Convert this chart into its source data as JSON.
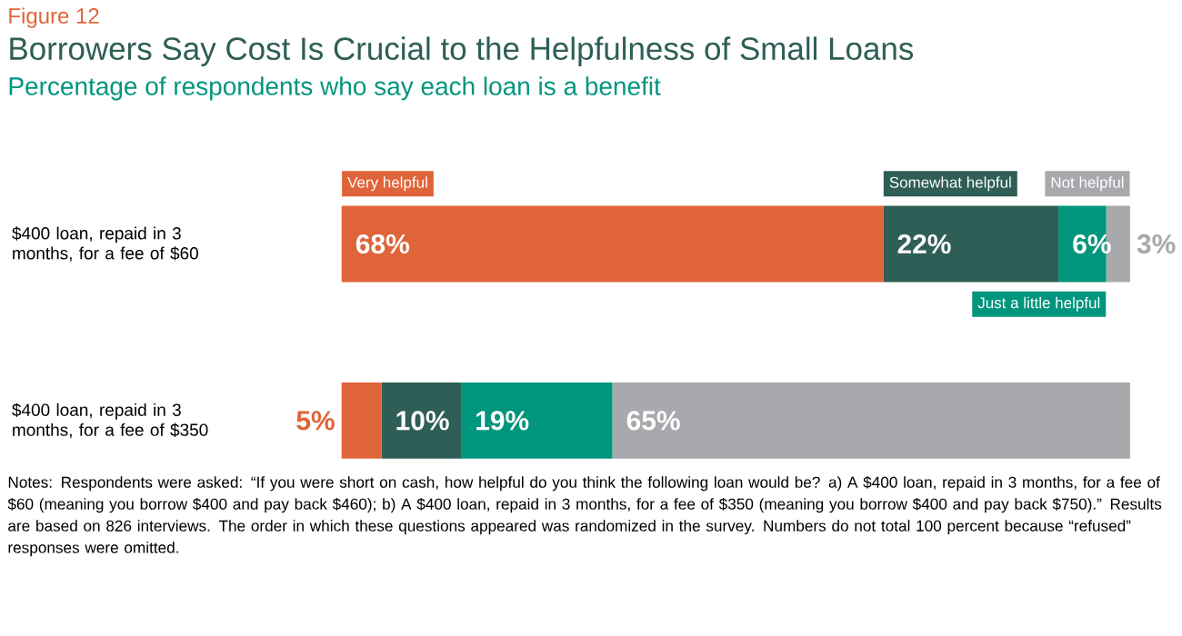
{
  "chart_data": {
    "type": "bar",
    "orientation": "horizontal",
    "stacked": true,
    "title": "Borrowers Say Cost Is Crucial to the Helpfulness of Small Loans",
    "subtitle": "Percentage of respondents who say each loan is a benefit",
    "categories": [
      "$400 loan, repaid in 3 months, for a fee of $60",
      "$400 loan, repaid in 3 months, for a fee of $350"
    ],
    "series": [
      {
        "name": "Very helpful",
        "color": "#e0643a",
        "values": [
          68,
          5
        ],
        "value_labels": [
          "68%",
          "5%"
        ]
      },
      {
        "name": "Somewhat helpful",
        "color": "#2e5e55",
        "values": [
          22,
          10
        ],
        "value_labels": [
          "22%",
          "10%"
        ]
      },
      {
        "name": "Just a little helpful",
        "color": "#00957d",
        "values": [
          6,
          19
        ],
        "value_labels": [
          "6%",
          "19%"
        ]
      },
      {
        "name": "Not helpful",
        "color": "#a7a9ac",
        "values": [
          3,
          65
        ],
        "value_labels": [
          "3%",
          "65%"
        ]
      }
    ],
    "legend": "top",
    "tick_labels": "y",
    "annotations": [
      "Figure 12",
      "Notes: Respondents were asked: “If you were short on cash, how helpful do you think the following loan would be? a) A $400 loan, repaid in 3 months, for a fee of $60 (meaning you borrow $400 and pay back $460); b) A $400 loan, repaid in 3 months, for a fee of $350 (meaning you borrow $400 and pay back $750).” Results are based on 826 interviews. The order in which these questions appeared was randomized in the survey. Numbers do not total 100 percent because “refused” responses were omitted."
    ]
  }
}
